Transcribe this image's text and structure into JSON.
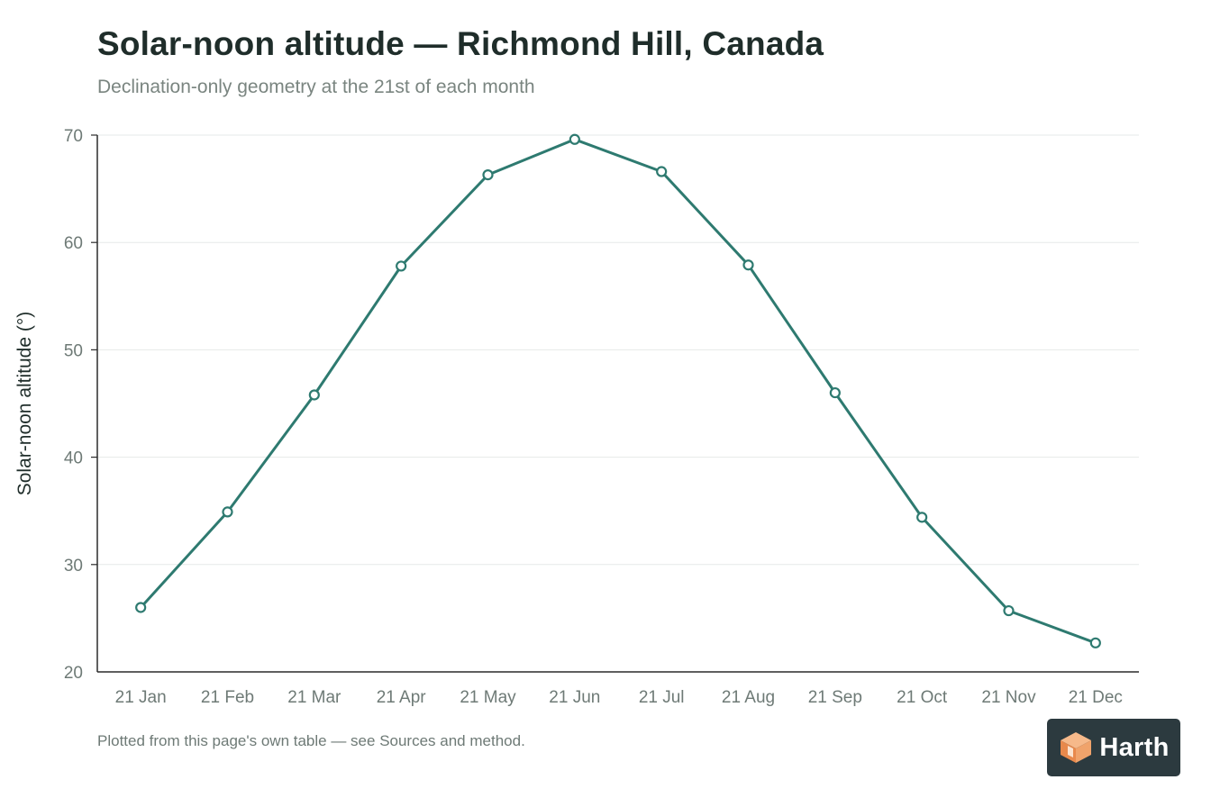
{
  "chart_data": {
    "type": "line",
    "title": "Solar-noon altitude — Richmond Hill, Canada",
    "subtitle": "Declination-only geometry at the 21st of each month",
    "xlabel": "",
    "ylabel": "Solar-noon altitude (°)",
    "ylim": [
      20,
      70
    ],
    "yticks": [
      20,
      30,
      40,
      50,
      60,
      70
    ],
    "categories": [
      "21 Jan",
      "21 Feb",
      "21 Mar",
      "21 Apr",
      "21 May",
      "21 Jun",
      "21 Jul",
      "21 Aug",
      "21 Sep",
      "21 Oct",
      "21 Nov",
      "21 Dec"
    ],
    "series": [
      {
        "values": [
          26.0,
          34.9,
          45.8,
          57.8,
          66.3,
          69.6,
          66.6,
          57.9,
          46.0,
          34.4,
          25.7,
          22.7
        ]
      }
    ],
    "grid": true,
    "line_color": "#2e7a70"
  },
  "footnote": "Plotted from this page's own table — see Sources and method.",
  "logo": {
    "text": "Harth",
    "icon": "orange-cube-icon"
  }
}
